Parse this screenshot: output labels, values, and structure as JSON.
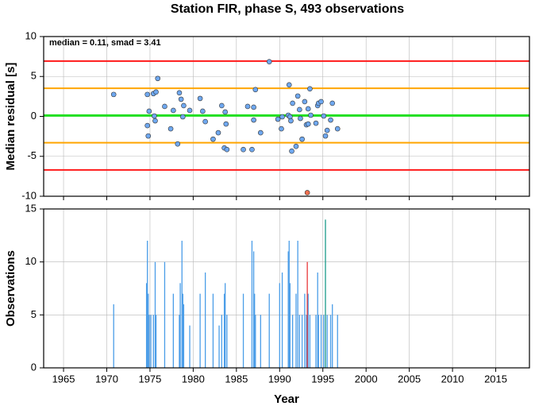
{
  "chart_data": [
    {
      "type": "scatter",
      "title": "Station FIR, phase S, 493 observations",
      "annotation": "median = 0.11, smad = 3.41",
      "y_label": "Median residual [s]",
      "xlim": [
        1962.7,
        2018.9
      ],
      "xticks": [
        1965,
        1970,
        1975,
        1980,
        1985,
        1990,
        1995,
        2000,
        2005,
        2010,
        2015
      ],
      "ylim": [
        -10,
        10
      ],
      "yticks": [
        -10,
        -5,
        0,
        5,
        10
      ],
      "grid": true,
      "hlines": [
        {
          "value": 6.93,
          "color": "#ff1a1a"
        },
        {
          "value": 3.52,
          "color": "#ffa500"
        },
        {
          "value": 0.11,
          "color": "#22e022"
        },
        {
          "value": -3.3,
          "color": "#ffa500"
        },
        {
          "value": -6.71,
          "color": "#ff1a1a"
        }
      ],
      "series": [
        {
          "color": "#6fa8f0",
          "x": [
            1970.8,
            1974.7,
            1974.7,
            1974.8,
            1974.9,
            1975.4,
            1975.5,
            1975.6,
            1975.7,
            1975.9,
            1976.7,
            1977.4,
            1977.7,
            1978.2,
            1978.4,
            1978.6,
            1978.8,
            1978.9,
            1979.6,
            1980.8,
            1981.1,
            1981.4,
            1982.3,
            1982.9,
            1983.3,
            1983.6,
            1983.9,
            1983.8,
            1983.7,
            1985.8,
            1986.3,
            1986.8,
            1987.0,
            1987.0,
            1987.2,
            1987.8,
            1988.8,
            1989.8,
            1990.2,
            1990.3,
            1991.0,
            1991.1,
            1991.2,
            1991.3,
            1991.4,
            1991.5,
            1991.9,
            1992.1,
            1992.3,
            1992.4,
            1992.6,
            1992.9,
            1993.1,
            1993.3,
            1993.3,
            1993.5,
            1993.6,
            1994.2,
            1994.4,
            1994.5,
            1994.8,
            1995.1,
            1995.3,
            1995.5,
            1995.9,
            1996.1,
            1996.7
          ],
          "values": [
            2.75,
            2.75,
            -1.15,
            -2.45,
            0.65,
            2.85,
            0.05,
            -0.55,
            3.05,
            4.75,
            1.25,
            -1.55,
            0.75,
            -3.45,
            2.95,
            2.15,
            -0.05,
            1.35,
            0.75,
            2.25,
            0.65,
            -0.65,
            -2.85,
            -2.05,
            1.35,
            -3.95,
            -4.15,
            -0.95,
            0.55,
            -4.15,
            1.25,
            -4.15,
            -0.45,
            1.15,
            3.35,
            -2.05,
            6.85,
            -0.35,
            -1.55,
            -0.05,
            0.15,
            3.95,
            -0.05,
            -0.55,
            -4.35,
            1.65,
            -3.75,
            2.55,
            0.85,
            -0.25,
            -2.85,
            1.85,
            -1.05,
            -0.95,
            0.95,
            3.45,
            0.15,
            -0.85,
            1.35,
            1.65,
            1.85,
            0.05,
            -2.45,
            -1.75,
            -0.45,
            1.65,
            -1.55
          ]
        },
        {
          "color": "#f07050",
          "x": [
            1993.2
          ],
          "values": [
            -9.55
          ]
        }
      ]
    },
    {
      "type": "bar",
      "x_label": "Year",
      "y_label": "Observations",
      "xlim": [
        1962.7,
        2018.9
      ],
      "xticks": [
        1965,
        1970,
        1975,
        1980,
        1985,
        1990,
        1995,
        2000,
        2005,
        2010,
        2015
      ],
      "ylim": [
        0,
        15
      ],
      "yticks": [
        0,
        5,
        10,
        15
      ],
      "grid": true,
      "series": [
        {
          "color": "#4a9de8",
          "x": [
            1970.8,
            1974.6,
            1974.7,
            1974.8,
            1974.9,
            1975.1,
            1975.4,
            1975.6,
            1975.7,
            1976.7,
            1977.7,
            1978.4,
            1978.5,
            1978.7,
            1978.8,
            1978.9,
            1979.6,
            1980.8,
            1981.4,
            1982.3,
            1983.0,
            1983.3,
            1983.6,
            1983.7,
            1983.9,
            1985.8,
            1986.8,
            1987.0,
            1987.1,
            1987.2,
            1987.8,
            1988.8,
            1990.0,
            1990.3,
            1991.0,
            1991.1,
            1991.2,
            1991.5,
            1991.9,
            1992.1,
            1992.3,
            1992.6,
            1992.9,
            1993.1,
            1993.3,
            1993.5,
            1994.2,
            1994.4,
            1994.5,
            1994.8,
            1995.1,
            1995.5,
            1995.9,
            1996.1,
            1996.7
          ],
          "values": [
            6,
            8,
            12,
            7,
            5,
            5,
            5,
            10,
            5,
            10,
            7,
            5,
            8,
            12,
            7,
            6,
            4,
            7,
            9,
            7,
            4,
            5,
            7,
            8,
            5,
            7,
            12,
            11,
            7,
            5,
            5,
            7,
            8,
            9,
            11,
            12,
            8,
            5,
            7,
            12,
            5,
            5,
            7,
            5,
            7,
            5,
            5,
            9,
            5,
            5,
            5,
            5,
            5,
            6,
            5
          ]
        },
        {
          "color": "#e8383a",
          "x": [
            1993.2
          ],
          "values": [
            10
          ]
        },
        {
          "color": "#1a9a8a",
          "x": [
            1995.3
          ],
          "values": [
            14
          ]
        }
      ]
    }
  ]
}
